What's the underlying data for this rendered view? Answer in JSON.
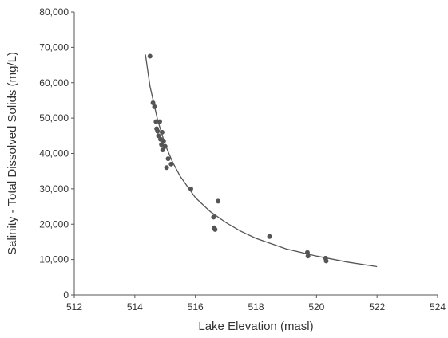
{
  "chart_data": {
    "type": "scatter",
    "title": "",
    "xlabel": "Lake Elevation (masl)",
    "ylabel": "Salinity - Total Dissolved Solids (mg/L)",
    "xlim": [
      512,
      524
    ],
    "ylim": [
      0,
      80000
    ],
    "x_ticks": [
      512,
      514,
      516,
      518,
      520,
      522,
      524
    ],
    "x_tick_labels": [
      "512",
      "514",
      "516",
      "518",
      "520",
      "522",
      "524"
    ],
    "y_ticks": [
      0,
      10000,
      20000,
      30000,
      40000,
      50000,
      60000,
      70000,
      80000
    ],
    "y_tick_labels": [
      "0",
      "10,000",
      "20,000",
      "30,000",
      "40,000",
      "50,000",
      "60,000",
      "70,000",
      "80,000"
    ],
    "grid": false,
    "legend": "none",
    "colors": {
      "points": "#555555",
      "curve": "#555555",
      "axis": "#555555"
    },
    "series": [
      {
        "type": "scatter",
        "points": [
          {
            "x": 514.5,
            "y": 67500
          },
          {
            "x": 514.6,
            "y": 54300
          },
          {
            "x": 514.65,
            "y": 53200
          },
          {
            "x": 514.7,
            "y": 49000
          },
          {
            "x": 514.72,
            "y": 47000
          },
          {
            "x": 514.75,
            "y": 46300
          },
          {
            "x": 514.78,
            "y": 45000
          },
          {
            "x": 514.82,
            "y": 49000
          },
          {
            "x": 514.85,
            "y": 44000
          },
          {
            "x": 514.88,
            "y": 42500
          },
          {
            "x": 514.9,
            "y": 46000
          },
          {
            "x": 514.92,
            "y": 41000
          },
          {
            "x": 514.95,
            "y": 43500
          },
          {
            "x": 515.0,
            "y": 42000
          },
          {
            "x": 515.05,
            "y": 36000
          },
          {
            "x": 515.1,
            "y": 38500
          },
          {
            "x": 515.2,
            "y": 37000
          },
          {
            "x": 515.85,
            "y": 30000
          },
          {
            "x": 516.6,
            "y": 22000
          },
          {
            "x": 516.62,
            "y": 19000
          },
          {
            "x": 516.65,
            "y": 18500
          },
          {
            "x": 516.75,
            "y": 26500
          },
          {
            "x": 518.45,
            "y": 16500
          },
          {
            "x": 519.7,
            "y": 12000
          },
          {
            "x": 519.72,
            "y": 11000
          },
          {
            "x": 520.3,
            "y": 10400
          },
          {
            "x": 520.32,
            "y": 9600
          }
        ]
      },
      {
        "type": "line",
        "points": [
          {
            "x": 514.35,
            "y": 68000
          },
          {
            "x": 514.5,
            "y": 59000
          },
          {
            "x": 514.75,
            "y": 49500
          },
          {
            "x": 515.0,
            "y": 42500
          },
          {
            "x": 515.25,
            "y": 37500
          },
          {
            "x": 515.5,
            "y": 33500
          },
          {
            "x": 516.0,
            "y": 27500
          },
          {
            "x": 516.5,
            "y": 23500
          },
          {
            "x": 517.0,
            "y": 20500
          },
          {
            "x": 517.5,
            "y": 18000
          },
          {
            "x": 518.0,
            "y": 16000
          },
          {
            "x": 519.0,
            "y": 13000
          },
          {
            "x": 520.0,
            "y": 11000
          },
          {
            "x": 521.0,
            "y": 9300
          },
          {
            "x": 522.0,
            "y": 8000
          }
        ]
      }
    ]
  }
}
